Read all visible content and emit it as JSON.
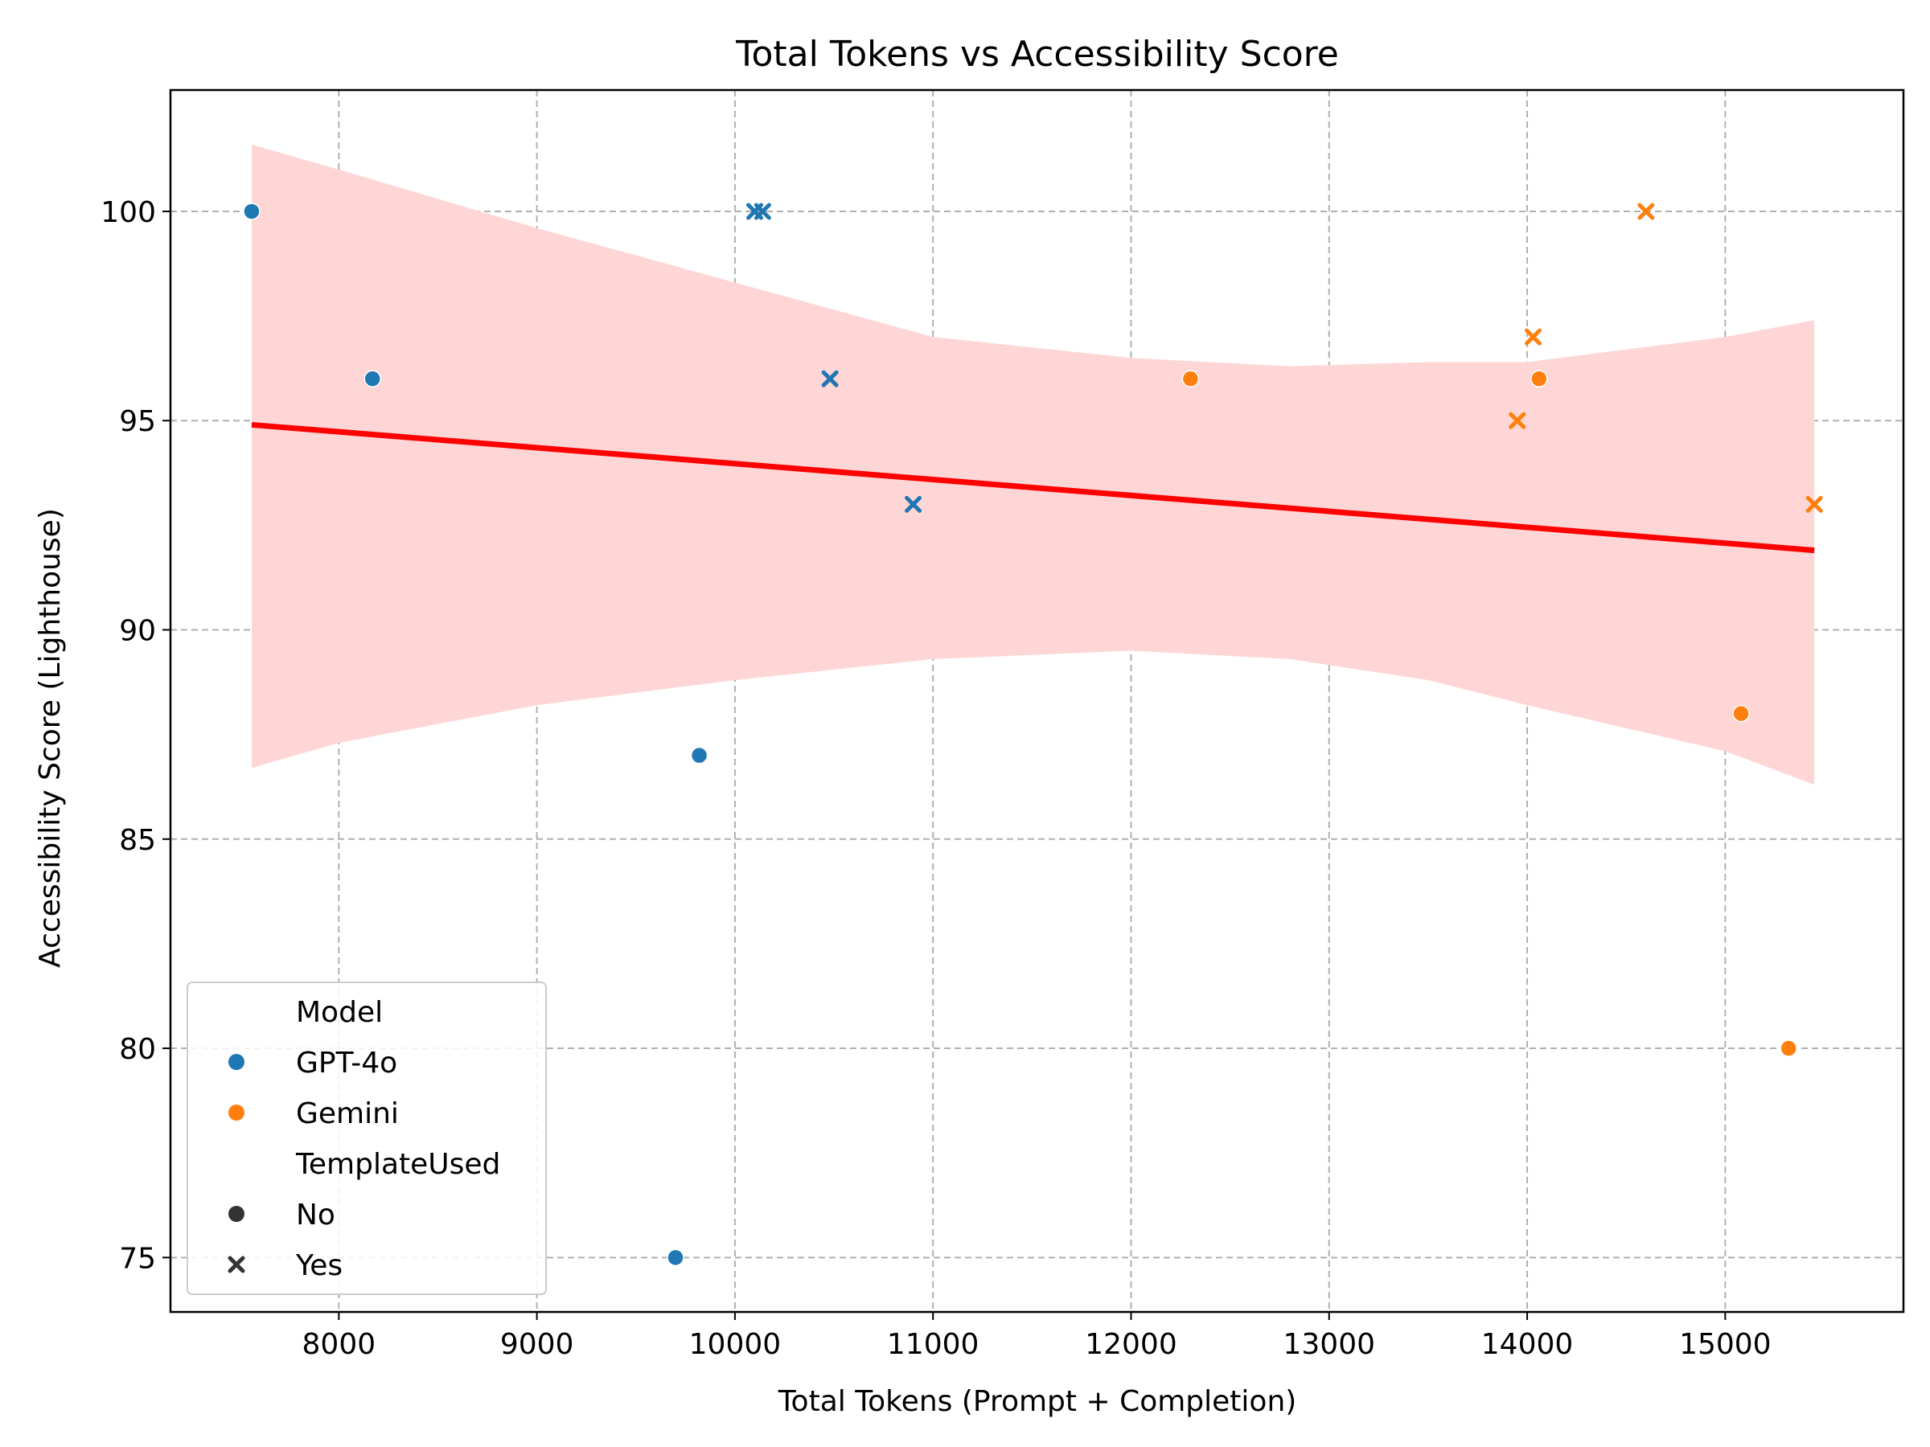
{
  "chart_data": {
    "type": "scatter",
    "title": "Total Tokens vs Accessibility Score",
    "xlabel": "Total Tokens (Prompt + Completion)",
    "ylabel": "Accessibility Score (Lighthouse)",
    "xlim": [
      7150,
      15900
    ],
    "ylim": [
      73.7,
      102.9
    ],
    "xticks": [
      8000,
      9000,
      10000,
      11000,
      12000,
      13000,
      14000,
      15000
    ],
    "yticks": [
      75,
      80,
      85,
      90,
      95,
      100
    ],
    "grid": true,
    "legend_position": "lower-left",
    "colors": {
      "GPT-4o": "#1f77b4",
      "Gemini": "#ff7f0e",
      "fit": "#ff0000",
      "band": "#ffd6d6",
      "grid": "#b0b0b0"
    },
    "legend": {
      "hue_title": "Model",
      "hue_entries": [
        "GPT-4o",
        "Gemini"
      ],
      "style_title": "TemplateUsed",
      "style_entries": [
        "No",
        "Yes"
      ]
    },
    "series": [
      {
        "model": "GPT-4o",
        "template": "No",
        "x": [
          7560,
          8170,
          9820,
          9700
        ],
        "y": [
          100,
          96,
          87,
          75
        ]
      },
      {
        "model": "GPT-4o",
        "template": "Yes",
        "x": [
          10100,
          10140,
          10480,
          10900
        ],
        "y": [
          100,
          100,
          96,
          93
        ]
      },
      {
        "model": "Gemini",
        "template": "No",
        "x": [
          12300,
          14060,
          15080,
          15320
        ],
        "y": [
          96,
          96,
          88,
          80
        ]
      },
      {
        "model": "Gemini",
        "template": "Yes",
        "x": [
          14600,
          14030,
          13950,
          15450
        ],
        "y": [
          100,
          97,
          95,
          93
        ]
      }
    ],
    "regression": {
      "x": [
        7560,
        15450
      ],
      "y": [
        94.9,
        91.9
      ],
      "ci_upper": {
        "x": [
          7560,
          8000,
          9000,
          10000,
          11000,
          12000,
          12800,
          13500,
          14000,
          15000,
          15450
        ],
        "y": [
          101.6,
          101.0,
          99.6,
          98.3,
          97.0,
          96.5,
          96.3,
          96.4,
          96.4,
          97.0,
          97.4
        ]
      },
      "ci_lower": {
        "x": [
          7560,
          8000,
          9000,
          10000,
          11000,
          12000,
          12800,
          13500,
          14000,
          15000,
          15450
        ],
        "y": [
          86.7,
          87.3,
          88.2,
          88.8,
          89.3,
          89.5,
          89.3,
          88.8,
          88.2,
          87.1,
          86.3
        ]
      }
    }
  }
}
